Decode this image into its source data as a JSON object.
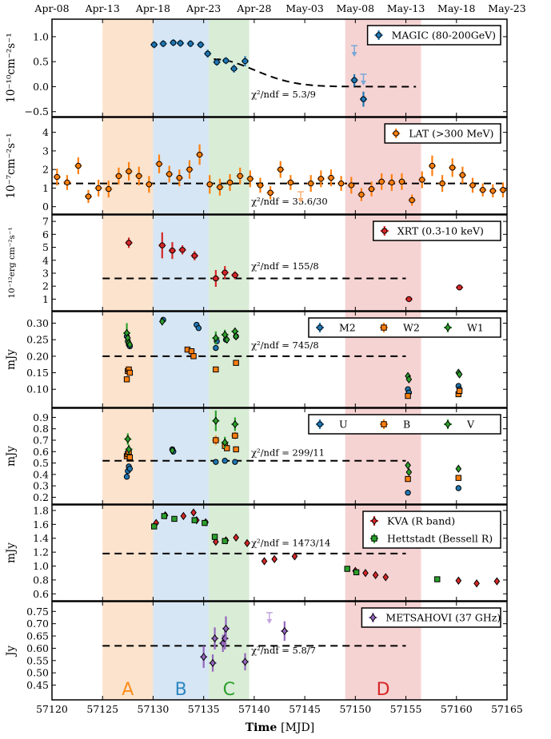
{
  "chart_data": {
    "type": "scatter",
    "top_axis_labels": [
      "Apr-08",
      "Apr-13",
      "Apr-18",
      "Apr-23",
      "Apr-28",
      "May-03",
      "May-08",
      "May-13",
      "May-18",
      "May-23"
    ],
    "top_axis_mjd": [
      57120,
      57125,
      57130,
      57135,
      57140,
      57145,
      57150,
      57155,
      57160,
      57165
    ],
    "xlabel_bold": "Time",
    "xlabel_unit": "[MJD]",
    "xlim": [
      57120,
      57165
    ],
    "xticks": [
      57120,
      57125,
      57130,
      57135,
      57140,
      57145,
      57150,
      57155,
      57160,
      57165
    ],
    "periods": [
      {
        "label": "A",
        "x0": 57125,
        "x1": 57130,
        "color": "#fbe3cd",
        "label_color": "#ff8c1a"
      },
      {
        "label": "B",
        "x0": 57130,
        "x1": 57135.5,
        "color": "#d6e6f4",
        "label_color": "#2e86c1"
      },
      {
        "label": "C",
        "x0": 57135.5,
        "x1": 57139.5,
        "color": "#d9ecd6",
        "label_color": "#2ca02c"
      },
      {
        "label": "D",
        "x0": 57149,
        "x1": 57156.5,
        "color": "#f6d3d3",
        "label_color": "#d62728"
      }
    ],
    "panels": [
      {
        "id": "magic",
        "ylabel": "10⁻¹⁰cm⁻²s⁻¹",
        "ylim": [
          -0.6,
          1.35
        ],
        "yticks": [
          -0.5,
          0.0,
          0.5,
          1.0
        ],
        "yticklabels": [
          "−0.5",
          "0.0",
          "0.5",
          "1.0"
        ],
        "chi2": "χ²/ndf = 5.3/9",
        "chi2_at": [
          57139.7,
          -0.22
        ],
        "fit": {
          "kind": "decay",
          "x0": 57136,
          "x1": 57156,
          "start": 0.55,
          "level": 0.0,
          "tau": 4
        },
        "series": [
          {
            "name": "MAGIC (80-200GeV)",
            "color": "#1f77b4",
            "marker": "circle",
            "x": [
              57130.1,
              57131.0,
              57132.0,
              57132.7,
              57133.7,
              57134.7,
              57135.4,
              57136.3,
              57137.2,
              57138.0,
              57139.1,
              57149.9,
              57150.8
            ],
            "y": [
              0.84,
              0.86,
              0.88,
              0.87,
              0.86,
              0.84,
              0.66,
              0.49,
              0.52,
              0.36,
              0.51,
              0.13,
              -0.25
            ],
            "err": [
              0.07,
              0.07,
              0.07,
              0.07,
              0.07,
              0.07,
              0.08,
              0.07,
              0.07,
              0.08,
              0.1,
              0.12,
              0.15
            ]
          }
        ],
        "upper_limits": [
          {
            "x": 57149.9,
            "y": 0.82,
            "color": "#79a8d6"
          },
          {
            "x": 57150.8,
            "y": 0.25,
            "color": "#79a8d6"
          }
        ]
      },
      {
        "id": "lat",
        "ylabel": "10⁻⁷cm⁻²s⁻¹",
        "ylim": [
          -0.4,
          4.8
        ],
        "yticks": [
          0,
          1,
          2,
          3,
          4
        ],
        "yticklabels": [
          "0",
          "1",
          "2",
          "3",
          "4"
        ],
        "chi2": "χ²/ndf = 35.6/30",
        "chi2_at": [
          57139.7,
          0.12
        ],
        "fit": {
          "kind": "const",
          "x0": 57120,
          "x1": 57165,
          "level": 1.25
        },
        "series": [
          {
            "name": "LAT (>300 MeV)",
            "color": "#ff7f0e",
            "marker": "circle",
            "x": [
              57120.5,
              57121.5,
              57122.6,
              57123.6,
              57124.6,
              57125.6,
              57126.6,
              57127.6,
              57128.6,
              57129.6,
              57130.6,
              57131.6,
              57132.6,
              57133.6,
              57134.6,
              57135.6,
              57136.6,
              57137.6,
              57138.6,
              57139.6,
              57140.6,
              57141.6,
              57142.6,
              57143.6,
              57145.6,
              57146.6,
              57147.6,
              57148.6,
              57149.6,
              57150.6,
              57151.6,
              57152.6,
              57153.6,
              57154.6,
              57155.6,
              57156.6,
              57157.6,
              57158.6,
              57159.6,
              57160.6,
              57161.6,
              57162.6,
              57163.6,
              57164.6
            ],
            "y": [
              1.6,
              1.3,
              2.2,
              0.55,
              1.0,
              0.95,
              1.65,
              1.9,
              1.65,
              1.2,
              2.3,
              1.75,
              1.55,
              2.0,
              2.8,
              1.2,
              1.05,
              1.3,
              1.65,
              1.5,
              1.15,
              0.75,
              2.0,
              1.3,
              1.25,
              1.5,
              1.55,
              1.25,
              1.15,
              0.65,
              0.95,
              1.35,
              1.3,
              1.35,
              0.35,
              1.45,
              2.2,
              1.25,
              2.1,
              1.7,
              1.15,
              0.9,
              0.85,
              0.9
            ],
            "err": [
              0.45,
              0.4,
              0.45,
              0.35,
              0.45,
              0.45,
              0.45,
              0.5,
              0.5,
              0.45,
              0.5,
              0.45,
              0.45,
              0.5,
              0.55,
              0.5,
              0.45,
              0.45,
              0.45,
              0.45,
              0.4,
              0.35,
              0.45,
              0.4,
              0.45,
              0.45,
              0.45,
              0.4,
              0.45,
              0.35,
              0.4,
              0.45,
              0.45,
              0.45,
              0.3,
              0.45,
              0.55,
              0.45,
              0.5,
              0.45,
              0.4,
              0.35,
              0.35,
              0.4
            ]
          }
        ],
        "upper_limits": [
          {
            "x": 57144.6,
            "y": 0.8,
            "color": "#f7b27a"
          }
        ]
      },
      {
        "id": "xrt",
        "ylabel": "10⁻¹²erg cm⁻²s⁻¹",
        "ylim": [
          0.1,
          7.5
        ],
        "yticks": [
          1,
          2,
          3,
          4,
          5,
          6,
          7
        ],
        "yticklabels": [
          "1",
          "2",
          "3",
          "4",
          "5",
          "6",
          "7"
        ],
        "chi2": "χ²/ndf = 155/8",
        "chi2_at": [
          57139.7,
          3.3
        ],
        "fit": {
          "kind": "const",
          "x0": 57125,
          "x1": 57155,
          "level": 2.6
        },
        "series": [
          {
            "name": "XRT (0.3-10 keV)",
            "color": "#d62728",
            "marker": "circle",
            "x": [
              57127.6,
              57130.9,
              57131.9,
              57132.9,
              57134.1,
              57136.2,
              57137.1,
              57138.1,
              57155.3,
              57160.3
            ],
            "y": [
              5.35,
              5.15,
              4.75,
              4.8,
              4.35,
              2.6,
              3.05,
              2.85,
              1.0,
              1.9
            ],
            "err": [
              0.4,
              1.0,
              0.65,
              0.35,
              0.35,
              0.65,
              0.5,
              0.3,
              0.08,
              0.12
            ]
          }
        ]
      },
      {
        "id": "uvot_uv",
        "ylabel": "mJy",
        "ylim": [
          0.045,
          0.335
        ],
        "yticks": [
          0.1,
          0.15,
          0.2,
          0.25,
          0.3
        ],
        "yticklabels": [
          "0.10",
          "0.15",
          "0.20",
          "0.25",
          "0.30"
        ],
        "chi2": "χ²/ndf = 745/8",
        "chi2_at": [
          57139.7,
          0.224
        ],
        "fit": {
          "kind": "const",
          "x0": 57125,
          "x1": 57155,
          "level": 0.2
        },
        "series": [
          {
            "name": "M2",
            "color": "#1f77b4",
            "marker": "circle",
            "x": [
              57127.4,
              57127.5,
              57127.6,
              57127.7,
              57131.0,
              57134.3,
              57134.5,
              57136.2,
              57136.3,
              57137.2,
              57138.2,
              57155.2,
              57155.3,
              57160.2,
              57160.3
            ],
            "y": [
              0.26,
              0.245,
              0.235,
              0.23,
              0.31,
              0.295,
              0.285,
              0.225,
              0.245,
              0.25,
              0.26,
              0.1,
              0.09,
              0.11,
              0.1
            ],
            "err": [
              0,
              0,
              0,
              0,
              0,
              0,
              0,
              0,
              0,
              0,
              0,
              0,
              0,
              0,
              0
            ]
          },
          {
            "name": "W2",
            "color": "#ff7f0e",
            "marker": "square",
            "x": [
              57127.4,
              57127.5,
              57127.6,
              57127.7,
              57133.4,
              57133.8,
              57134.0,
              57136.2,
              57138.2,
              57155.2,
              57160.2,
              57160.3
            ],
            "y": [
              0.13,
              0.155,
              0.16,
              0.15,
              0.22,
              0.215,
              0.2,
              0.16,
              0.18,
              0.08,
              0.085,
              0.095
            ],
            "err": [
              0,
              0,
              0,
              0,
              0,
              0,
              0,
              0,
              0,
              0,
              0,
              0
            ]
          },
          {
            "name": "W1",
            "color": "#2ca02c",
            "marker": "diamond",
            "x": [
              57127.4,
              57127.5,
              57127.6,
              57127.7,
              57130.9,
              57136.2,
              57137.1,
              57137.3,
              57138.1,
              57138.2,
              57155.2,
              57155.3,
              57160.2,
              57160.3
            ],
            "y": [
              0.27,
              0.255,
              0.24,
              0.235,
              0.305,
              0.255,
              0.265,
              0.25,
              0.275,
              0.26,
              0.14,
              0.13,
              0.15,
              0.145
            ],
            "err": [
              0.03,
              0,
              0,
              0,
              0,
              0.02,
              0.015,
              0,
              0.01,
              0,
              0,
              0,
              0,
              0
            ]
          }
        ]
      },
      {
        "id": "uvot_opt",
        "ylabel": "mJy",
        "ylim": [
          0.14,
          0.98
        ],
        "yticks": [
          0.2,
          0.3,
          0.4,
          0.5,
          0.6,
          0.7,
          0.8,
          0.9
        ],
        "yticklabels": [
          "0.2",
          "0.3",
          "0.4",
          "0.5",
          "0.6",
          "0.7",
          "0.8",
          "0.9"
        ],
        "chi2": "χ²/ndf = 299/11",
        "chi2_at": [
          57139.7,
          0.565
        ],
        "fit": {
          "kind": "const",
          "x0": 57125,
          "x1": 57155,
          "level": 0.52
        },
        "series": [
          {
            "name": "U",
            "color": "#1f77b4",
            "marker": "circle",
            "x": [
              57127.4,
              57127.5,
              57127.6,
              57127.7,
              57131.9,
              57132.0,
              57136.2,
              57137.1,
              57138.1,
              57155.2,
              57160.2
            ],
            "y": [
              0.38,
              0.43,
              0.47,
              0.45,
              0.62,
              0.6,
              0.51,
              0.52,
              0.51,
              0.24,
              0.28
            ],
            "err": [
              0,
              0,
              0,
              0,
              0,
              0,
              0,
              0,
              0,
              0,
              0
            ]
          },
          {
            "name": "B",
            "color": "#ff7f0e",
            "marker": "square",
            "x": [
              57127.4,
              57127.5,
              57127.6,
              57127.7,
              57136.2,
              57137.1,
              57137.3,
              57138.1,
              57138.2,
              57155.2,
              57160.2
            ],
            "y": [
              0.56,
              0.58,
              0.6,
              0.55,
              0.7,
              0.65,
              0.63,
              0.74,
              0.62,
              0.36,
              0.37
            ],
            "err": [
              0,
              0,
              0,
              0,
              0.04,
              0,
              0,
              0.03,
              0,
              0,
              0
            ]
          },
          {
            "name": "V",
            "color": "#2ca02c",
            "marker": "diamond",
            "x": [
              57127.5,
              57127.6,
              57131.9,
              57136.2,
              57137.1,
              57138.1,
              57155.2,
              57155.3,
              57160.2
            ],
            "y": [
              0.71,
              0.62,
              0.61,
              0.87,
              0.68,
              0.84,
              0.48,
              0.42,
              0.45
            ],
            "err": [
              0.05,
              0.04,
              0,
              0.09,
              0.05,
              0.06,
              0,
              0,
              0
            ]
          }
        ]
      },
      {
        "id": "optical_r",
        "ylabel": "mJy",
        "ylim": [
          0.5,
          1.88
        ],
        "yticks": [
          0.6,
          0.8,
          1.0,
          1.2,
          1.4,
          1.6,
          1.8
        ],
        "yticklabels": [
          "0.6",
          "0.8",
          "1.0",
          "1.2",
          "1.4",
          "1.6",
          "1.8"
        ],
        "chi2": "χ²/ndf = 1473/14",
        "chi2_at": [
          57139.7,
          1.29
        ],
        "fit": {
          "kind": "const",
          "x0": 57125,
          "x1": 57155,
          "level": 1.18
        },
        "series": [
          {
            "name": "KVA (R band)",
            "color": "#d62728",
            "marker": "diamond",
            "x": [
              57130.3,
              57131.2,
              57133.0,
              57134.0,
              57134.3,
              57135.2,
              57136.2,
              57137.2,
              57138.2,
              57139.3,
              57141.0,
              57142.0,
              57144.0,
              57150.0,
              57151.0,
              57152.0,
              57153.0,
              57160.2,
              57162.0,
              57164.0
            ],
            "y": [
              1.62,
              1.73,
              1.72,
              1.77,
              1.66,
              1.63,
              1.35,
              1.37,
              1.41,
              1.33,
              1.07,
              1.1,
              1.14,
              0.93,
              0.9,
              0.87,
              0.84,
              0.79,
              0.75,
              0.78
            ],
            "err": [
              0,
              0,
              0,
              0,
              0,
              0,
              0,
              0,
              0,
              0,
              0,
              0,
              0,
              0,
              0,
              0,
              0,
              0,
              0,
              0
            ]
          },
          {
            "name": "Hettstadt (Bessell R)",
            "color": "#2ca02c",
            "marker": "square",
            "x": [
              57130.1,
              57131.1,
              57132.1,
              57134.1,
              57135.1,
              57136.1,
              57137.1,
              57149.2,
              57150.1,
              57158.1
            ],
            "y": [
              1.57,
              1.72,
              1.68,
              1.66,
              1.62,
              1.42,
              1.36,
              0.96,
              0.91,
              0.81
            ],
            "err": [
              0,
              0,
              0,
              0,
              0,
              0,
              0,
              0,
              0,
              0
            ]
          }
        ]
      },
      {
        "id": "metsahovi",
        "ylabel": "Jy",
        "ylim": [
          0.39,
          0.79
        ],
        "yticks": [
          0.45,
          0.5,
          0.55,
          0.6,
          0.65,
          0.7,
          0.75
        ],
        "yticklabels": [
          "0.45",
          "0.50",
          "0.55",
          "0.60",
          "0.65",
          "0.70",
          "0.75"
        ],
        "chi2": "χ²/ndf = 5.8/7",
        "chi2_at": [
          57139.7,
          0.578
        ],
        "fit": {
          "kind": "const",
          "x0": 57125,
          "x1": 57155,
          "level": 0.61
        },
        "series": [
          {
            "name": "METSAHOVI (37 GHz)",
            "color": "#9467bd",
            "marker": "diamond",
            "x": [
              57135.0,
              57135.9,
              57136.1,
              57136.9,
              57137.1,
              57137.2,
              57139.1,
              57143.0
            ],
            "y": [
              0.565,
              0.54,
              0.64,
              0.62,
              0.64,
              0.68,
              0.545,
              0.67
            ],
            "err": [
              0.045,
              0.035,
              0.045,
              0.035,
              0.045,
              0.05,
              0.035,
              0.04
            ]
          }
        ],
        "upper_limits": [
          {
            "x": 57141.5,
            "y": 0.745,
            "color": "#c5a6e0"
          }
        ]
      }
    ]
  }
}
